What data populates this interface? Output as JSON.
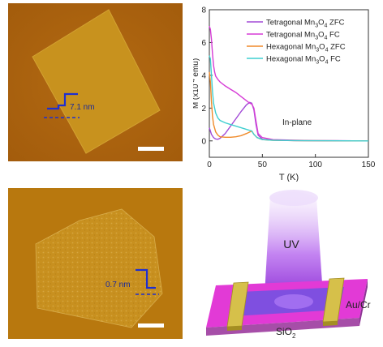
{
  "afm_top": {
    "step_label": "7.1 nm"
  },
  "afm_bottom": {
    "step_label": "0.7 nm"
  },
  "chart_data": {
    "type": "line",
    "xlabel": "T (K)",
    "ylabel_prefix": "M (x10",
    "ylabel_exp": "-4",
    "ylabel_suffix": " emu)",
    "xlim": [
      0,
      150
    ],
    "ylim": [
      -1,
      8
    ],
    "xticks": [
      0,
      50,
      100,
      150
    ],
    "yticks": [
      0,
      2,
      4,
      6,
      8
    ],
    "annotation": "In-plane",
    "legend_position": "top-right",
    "series": [
      {
        "name_main": "Tetragonal Mn",
        "sub1": "3",
        "mid": "O",
        "sub2": "4",
        "tail": " ZFC",
        "color": "#a24ad6",
        "x": [
          0,
          1,
          2,
          3,
          4,
          5,
          6,
          8,
          10,
          15,
          20,
          25,
          30,
          35,
          38,
          40,
          42,
          44,
          46,
          50,
          60,
          80,
          100,
          120,
          150
        ],
        "y": [
          0.8,
          0.6,
          0.4,
          0.3,
          0.2,
          0.15,
          0.12,
          0.1,
          0.15,
          0.45,
          0.9,
          1.35,
          1.8,
          2.2,
          2.35,
          2.3,
          1.9,
          1.0,
          0.35,
          0.1,
          0.05,
          0.02,
          0.01,
          0.01,
          0.0
        ]
      },
      {
        "name_main": "Tetragonal Mn",
        "sub1": "3",
        "mid": "O",
        "sub2": "4",
        "tail": " FC",
        "color": "#d63cd6",
        "x": [
          0,
          1,
          2,
          3,
          4,
          5,
          6,
          8,
          10,
          15,
          20,
          25,
          30,
          35,
          38,
          40,
          42,
          44,
          46,
          50,
          60,
          80,
          100,
          120,
          150
        ],
        "y": [
          7.0,
          6.8,
          6.2,
          5.3,
          4.6,
          4.2,
          3.95,
          3.75,
          3.6,
          3.35,
          3.15,
          2.95,
          2.7,
          2.45,
          2.3,
          2.25,
          2.0,
          1.2,
          0.45,
          0.2,
          0.08,
          0.04,
          0.02,
          0.01,
          0.0
        ]
      },
      {
        "name_main": "Hexagonal Mn",
        "sub1": "3",
        "mid": "O",
        "sub2": "4",
        "tail": " ZFC",
        "color": "#f08a2a",
        "x": [
          0,
          1,
          2,
          3,
          4,
          6,
          8,
          10,
          15,
          20,
          25,
          30,
          35,
          40,
          42,
          45,
          50,
          60,
          80,
          100,
          150
        ],
        "y": [
          4.2,
          3.6,
          2.4,
          1.5,
          1.0,
          0.55,
          0.35,
          0.25,
          0.22,
          0.22,
          0.25,
          0.32,
          0.45,
          0.6,
          0.4,
          0.2,
          0.08,
          0.04,
          0.02,
          0.01,
          0.0
        ]
      },
      {
        "name_main": "Hexagonal Mn",
        "sub1": "3",
        "mid": "O",
        "sub2": "4",
        "tail": " FC",
        "color": "#3fcfd0",
        "x": [
          0,
          1,
          2,
          3,
          4,
          6,
          8,
          10,
          15,
          20,
          25,
          30,
          35,
          40,
          42,
          45,
          50,
          60,
          80,
          100,
          150
        ],
        "y": [
          5.2,
          5.0,
          4.0,
          3.0,
          2.3,
          1.7,
          1.4,
          1.25,
          1.1,
          1.0,
          0.9,
          0.8,
          0.7,
          0.6,
          0.4,
          0.2,
          0.08,
          0.04,
          0.02,
          0.01,
          0.0
        ]
      }
    ]
  },
  "device": {
    "uv_label": "UV",
    "electrode_label": "Au/Cr",
    "substrate_main": "SiO",
    "substrate_sub": "2"
  }
}
